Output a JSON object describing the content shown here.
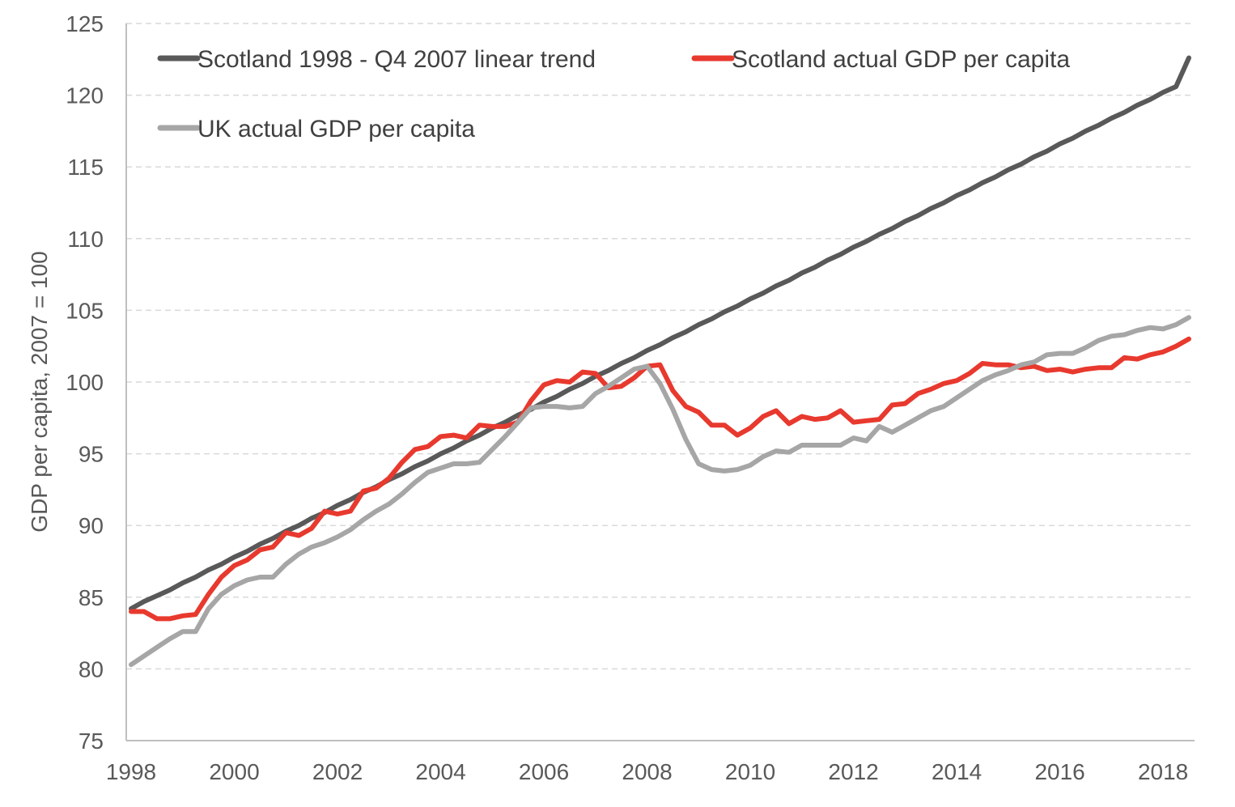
{
  "chart_data": {
    "type": "line",
    "title": "",
    "xlabel": "",
    "ylabel": "GDP per capita,  2007 = 100",
    "ylim": [
      75,
      125
    ],
    "yticks": [
      75,
      80,
      85,
      90,
      95,
      100,
      105,
      110,
      115,
      120,
      125
    ],
    "xlim": [
      1998.0,
      2018.5
    ],
    "xticks": [
      1998,
      2000,
      2002,
      2004,
      2006,
      2008,
      2010,
      2012,
      2014,
      2016,
      2018
    ],
    "grid": "horizontal dashed",
    "legend_position": "top-left",
    "x": [
      1998.0,
      1998.25,
      1998.5,
      1998.75,
      1999.0,
      1999.25,
      1999.5,
      1999.75,
      2000.0,
      2000.25,
      2000.5,
      2000.75,
      2001.0,
      2001.25,
      2001.5,
      2001.75,
      2002.0,
      2002.25,
      2002.5,
      2002.75,
      2003.0,
      2003.25,
      2003.5,
      2003.75,
      2004.0,
      2004.25,
      2004.5,
      2004.75,
      2005.0,
      2005.25,
      2005.5,
      2005.75,
      2006.0,
      2006.25,
      2006.5,
      2006.75,
      2007.0,
      2007.25,
      2007.5,
      2007.75,
      2008.0,
      2008.25,
      2008.5,
      2008.75,
      2009.0,
      2009.25,
      2009.5,
      2009.75,
      2010.0,
      2010.25,
      2010.5,
      2010.75,
      2011.0,
      2011.25,
      2011.5,
      2011.75,
      2012.0,
      2012.25,
      2012.5,
      2012.75,
      2013.0,
      2013.25,
      2013.5,
      2013.75,
      2014.0,
      2014.25,
      2014.5,
      2014.75,
      2015.0,
      2015.25,
      2015.5,
      2015.75,
      2016.0,
      2016.25,
      2016.5,
      2016.75,
      2017.0,
      2017.25,
      2017.5,
      2017.75,
      2018.0,
      2018.25,
      2018.5
    ],
    "series": [
      {
        "name": "Scotland 1998 - Q4 2007 linear trend",
        "color": "#595959",
        "values": [
          84.2,
          84.7,
          85.1,
          85.5,
          86.0,
          86.4,
          86.9,
          87.3,
          87.8,
          88.2,
          88.7,
          89.1,
          89.6,
          90.0,
          90.5,
          90.9,
          91.4,
          91.8,
          92.3,
          92.7,
          93.2,
          93.6,
          94.1,
          94.5,
          95.0,
          95.4,
          95.9,
          96.3,
          96.8,
          97.2,
          97.7,
          98.1,
          98.6,
          99.0,
          99.5,
          99.9,
          100.4,
          100.8,
          101.3,
          101.7,
          102.2,
          102.6,
          103.1,
          103.5,
          104.0,
          104.4,
          104.9,
          105.3,
          105.8,
          106.2,
          106.7,
          107.1,
          107.6,
          108.0,
          108.5,
          108.9,
          109.4,
          109.8,
          110.3,
          110.7,
          111.2,
          111.6,
          112.1,
          112.5,
          113.0,
          113.4,
          113.9,
          114.3,
          114.8,
          115.2,
          115.7,
          116.1,
          116.6,
          117.0,
          117.5,
          117.9,
          118.4,
          118.8,
          119.3,
          119.7,
          120.2,
          120.6,
          122.6
        ]
      },
      {
        "name": "Scotland actual GDP per capita",
        "color": "#e8392e",
        "values": [
          84.0,
          84.0,
          83.5,
          83.5,
          83.7,
          83.8,
          85.2,
          86.4,
          87.2,
          87.6,
          88.3,
          88.5,
          89.5,
          89.3,
          89.8,
          91.0,
          90.8,
          91.0,
          92.4,
          92.6,
          93.3,
          94.4,
          95.3,
          95.5,
          96.2,
          96.3,
          96.1,
          97.0,
          96.9,
          96.9,
          97.2,
          98.7,
          99.8,
          100.1,
          100.0,
          100.7,
          100.6,
          99.6,
          99.7,
          100.3,
          101.1,
          101.2,
          99.4,
          98.3,
          97.9,
          97.0,
          97.0,
          96.3,
          96.8,
          97.6,
          98.0,
          97.1,
          97.6,
          97.4,
          97.5,
          98.0,
          97.2,
          97.3,
          97.4,
          98.4,
          98.5,
          99.2,
          99.5,
          99.9,
          100.1,
          100.6,
          101.3,
          101.2,
          101.2,
          101.0,
          101.1,
          100.8,
          100.9,
          100.7,
          100.9,
          101.0,
          101.0,
          101.7,
          101.6,
          101.9,
          102.1,
          102.5,
          103.0
        ]
      },
      {
        "name": "UK actual GDP per capita",
        "color": "#a6a6a6",
        "values": [
          80.3,
          80.9,
          81.5,
          82.1,
          82.6,
          82.6,
          84.2,
          85.2,
          85.8,
          86.2,
          86.4,
          86.4,
          87.3,
          88.0,
          88.5,
          88.8,
          89.2,
          89.7,
          90.4,
          91.0,
          91.5,
          92.2,
          93.0,
          93.7,
          94.0,
          94.3,
          94.3,
          94.4,
          95.3,
          96.2,
          97.2,
          98.2,
          98.3,
          98.3,
          98.2,
          98.3,
          99.2,
          99.7,
          100.3,
          100.9,
          101.1,
          99.9,
          98.1,
          96.0,
          94.3,
          93.9,
          93.8,
          93.9,
          94.2,
          94.8,
          95.2,
          95.1,
          95.6,
          95.6,
          95.6,
          95.6,
          96.1,
          95.9,
          96.9,
          96.5,
          97.0,
          97.5,
          98.0,
          98.3,
          98.9,
          99.5,
          100.1,
          100.5,
          100.8,
          101.2,
          101.4,
          101.9,
          102.0,
          102.0,
          102.4,
          102.9,
          103.2,
          103.3,
          103.6,
          103.8,
          103.7,
          104.0,
          104.5
        ]
      }
    ]
  }
}
